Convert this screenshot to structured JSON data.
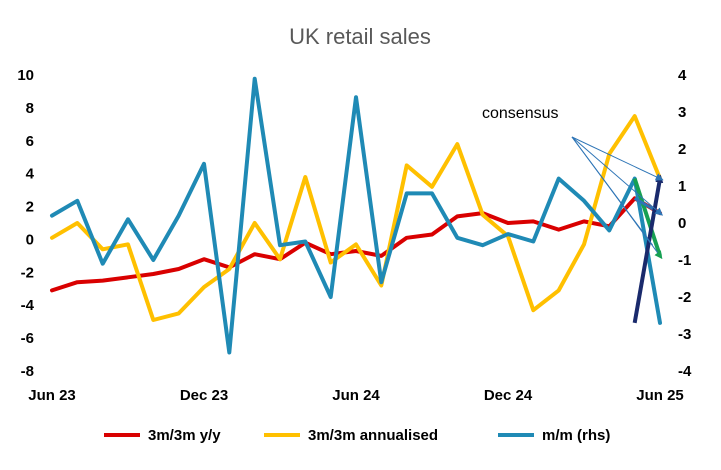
{
  "chart_data": {
    "type": "line",
    "title": "UK retail sales",
    "x": [
      "2023-06",
      "2023-07",
      "2023-08",
      "2023-09",
      "2023-10",
      "2023-11",
      "2023-12",
      "2024-01",
      "2024-02",
      "2024-03",
      "2024-04",
      "2024-05",
      "2024-06",
      "2024-07",
      "2024-08",
      "2024-09",
      "2024-10",
      "2024-11",
      "2024-12",
      "2025-01",
      "2025-02",
      "2025-03",
      "2025-04",
      "2025-05",
      "2025-06"
    ],
    "x_tick_labels": [
      "Jun 23",
      "Dec 23",
      "Jun 24",
      "Dec 24",
      "Jun 25"
    ],
    "x_tick_dates": [
      "2023-06",
      "2023-12",
      "2024-06",
      "2024-12",
      "2025-06"
    ],
    "y_left": {
      "ylim": [
        -8,
        10
      ],
      "ticks": [
        -8,
        -6,
        -4,
        -2,
        0,
        2,
        4,
        6,
        8,
        10
      ]
    },
    "y_right": {
      "ylim": [
        -4,
        4
      ],
      "ticks": [
        -4,
        -3,
        -2,
        -1,
        0,
        1,
        2,
        3,
        4
      ]
    },
    "series": [
      {
        "name": "3m/3m y/y",
        "axis": "left",
        "color": "#d90000",
        "values": [
          -3.1,
          -2.6,
          -2.5,
          -2.3,
          -2.1,
          -1.8,
          -1.2,
          -1.7,
          -0.9,
          -1.2,
          -0.2,
          -0.9,
          -0.7,
          -1.0,
          0.1,
          0.3,
          1.4,
          1.6,
          1.0,
          1.1,
          0.6,
          1.1,
          0.8,
          2.5,
          1.6
        ]
      },
      {
        "name": "3m/3m annualised",
        "axis": "left",
        "color": "#ffc000",
        "values": [
          0.1,
          1.0,
          -0.6,
          -0.3,
          -4.9,
          -4.5,
          -2.9,
          -1.8,
          1.0,
          -1.2,
          3.8,
          -1.4,
          -0.3,
          -2.8,
          4.5,
          3.2,
          5.8,
          1.5,
          0.2,
          -4.3,
          -3.1,
          -0.3,
          5.2,
          7.5,
          3.7
        ]
      },
      {
        "name": "m/m (rhs)",
        "axis": "right",
        "color": "#1f8ab5",
        "values": [
          0.2,
          0.6,
          -1.1,
          0.1,
          -1.0,
          0.2,
          1.6,
          -3.5,
          3.9,
          -0.6,
          -0.5,
          -2.0,
          3.4,
          -1.6,
          0.8,
          0.8,
          -0.4,
          -0.6,
          -0.3,
          -0.5,
          1.2,
          0.6,
          -0.2,
          1.2,
          -2.7
        ]
      }
    ],
    "consensus": {
      "label": "consensus",
      "anchor_date": "2025-06",
      "m_m_rhs": {
        "color": "#1a2a6c",
        "from": -2.7,
        "to": 1.2
      },
      "annualised_3m3m": {
        "color": "#17a053",
        "from": 3.7,
        "to": -1.0
      },
      "y_y_3m3m": {
        "color": "#2e75b6",
        "from": 1.6,
        "to": 1.6
      }
    },
    "grid": false,
    "legend": "bottom"
  }
}
